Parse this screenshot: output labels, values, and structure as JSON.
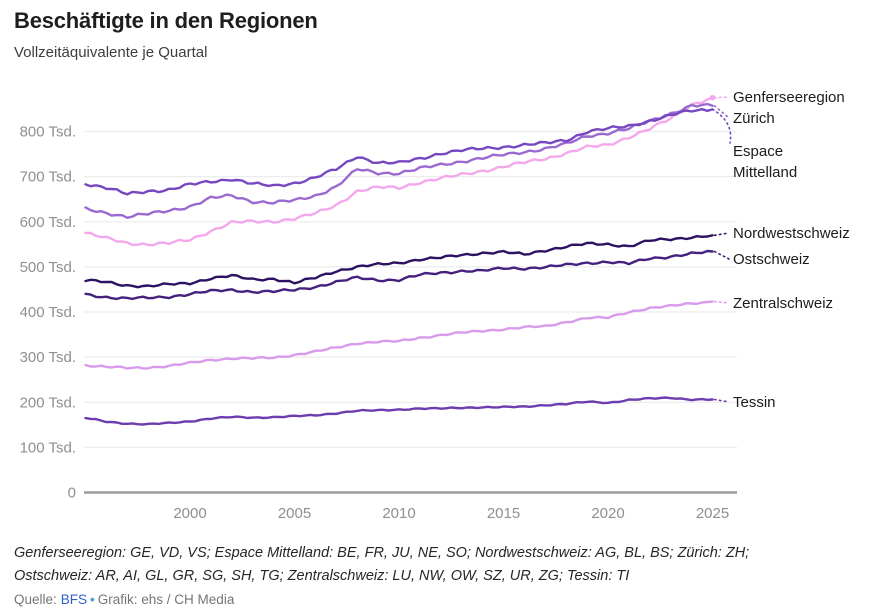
{
  "header": {
    "title": "Beschäftigte in den Regionen",
    "subtitle": "Vollzeitäquivalente je Quartal"
  },
  "chart_data": {
    "type": "line",
    "title": "Beschäftigte in den Regionen",
    "subtitle": "Vollzeitäquivalente je Quartal",
    "unit": "Tsd.",
    "grid": true,
    "legend_position": "right-of-line-ends",
    "ylim": [
      0,
      880
    ],
    "xlim": [
      1995,
      2025.6
    ],
    "x_ticks": [
      {
        "value": 2000,
        "label": "2000"
      },
      {
        "value": 2005,
        "label": "2005"
      },
      {
        "value": 2010,
        "label": "2010"
      },
      {
        "value": 2015,
        "label": "2015"
      },
      {
        "value": 2020,
        "label": "2020"
      },
      {
        "value": 2025,
        "label": "2025"
      }
    ],
    "y_ticks": [
      {
        "value": 800,
        "label": "800 Tsd."
      },
      {
        "value": 700,
        "label": "700 Tsd."
      },
      {
        "value": 600,
        "label": "600 Tsd."
      },
      {
        "value": 500,
        "label": "500 Tsd."
      },
      {
        "value": 400,
        "label": "400 Tsd."
      },
      {
        "value": 300,
        "label": "300 Tsd."
      },
      {
        "value": 200,
        "label": "200 Tsd."
      },
      {
        "value": 100,
        "label": "100 Tsd."
      },
      {
        "value": 0,
        "label": "0"
      }
    ],
    "x": [
      1995,
      1996,
      1997,
      1998,
      1999,
      2000,
      2001,
      2002,
      2003,
      2004,
      2005,
      2006,
      2007,
      2008,
      2009,
      2010,
      2011,
      2012,
      2013,
      2014,
      2015,
      2016,
      2017,
      2018,
      2019,
      2020,
      2021,
      2022,
      2023,
      2024,
      2025
    ],
    "series": [
      {
        "name": "Genferseeregion",
        "color": "#f3a8ec",
        "values": [
          575,
          563,
          553,
          550,
          552,
          560,
          580,
          598,
          600,
          601,
          607,
          618,
          637,
          668,
          676,
          675,
          688,
          696,
          704,
          713,
          722,
          731,
          740,
          752,
          765,
          770,
          788,
          806,
          828,
          860,
          875
        ]
      },
      {
        "name": "Zürich",
        "color": "#9a6ad1",
        "values": [
          628,
          620,
          611,
          617,
          625,
          634,
          652,
          658,
          645,
          642,
          647,
          658,
          678,
          716,
          708,
          708,
          718,
          726,
          734,
          741,
          748,
          755,
          762,
          772,
          790,
          797,
          806,
          823,
          840,
          857,
          857
        ]
      },
      {
        "name": "Espace Mittelland",
        "color": "#7747c0",
        "values": [
          685,
          675,
          661,
          668,
          671,
          682,
          689,
          695,
          684,
          679,
          686,
          698,
          716,
          745,
          731,
          730,
          740,
          752,
          758,
          762,
          766,
          770,
          774,
          781,
          800,
          806,
          812,
          824,
          836,
          846,
          849
        ]
      },
      {
        "name": "Nordwestschweiz",
        "color": "#2e1162",
        "values": [
          470,
          466,
          459,
          457,
          461,
          464,
          475,
          480,
          472,
          474,
          464,
          476,
          491,
          500,
          505,
          509,
          517,
          520,
          526,
          531,
          533,
          527,
          537,
          545,
          551,
          550,
          546,
          558,
          561,
          566,
          570
        ]
      },
      {
        "name": "Ostschweiz",
        "color": "#44217e",
        "values": [
          439,
          433,
          430,
          431,
          434,
          440,
          446,
          449,
          445,
          445,
          449,
          456,
          466,
          476,
          471,
          471,
          482,
          487,
          491,
          491,
          497,
          497,
          499,
          504,
          509,
          511,
          507,
          519,
          523,
          529,
          534
        ]
      },
      {
        "name": "Zentralschweiz",
        "color": "#d89bec",
        "values": [
          282,
          278,
          276,
          277,
          280,
          287,
          294,
          297,
          297,
          299,
          305,
          312,
          321,
          331,
          334,
          335,
          343,
          349,
          354,
          358,
          362,
          366,
          368,
          378,
          387,
          387,
          400,
          409,
          413,
          419,
          423
        ]
      },
      {
        "name": "Tessin",
        "color": "#6d3cae",
        "values": [
          165,
          157,
          153,
          151,
          154,
          158,
          164,
          167,
          166,
          167,
          169,
          171,
          176,
          181,
          182,
          184,
          186,
          186,
          188,
          189,
          189,
          190,
          194,
          196,
          201,
          199,
          205,
          208,
          210,
          206,
          206
        ]
      }
    ]
  },
  "footnote": {
    "line1": "Genferseeregion: GE, VD, VS; Espace Mittelland: BE, FR, JU, NE, SO; Nordwestschweiz: AG, BL, BS; Zürich: ZH;",
    "line2": "Ostschweiz: AR, AI, GL, GR, SG, SH, TG; Zentralschweiz: LU, NW, OW, SZ, UR, ZG; Tessin: TI"
  },
  "source": {
    "prefix": "Quelle:",
    "link": "BFS",
    "bullet": "•",
    "credit": "Grafik: ehs / CH Media"
  }
}
